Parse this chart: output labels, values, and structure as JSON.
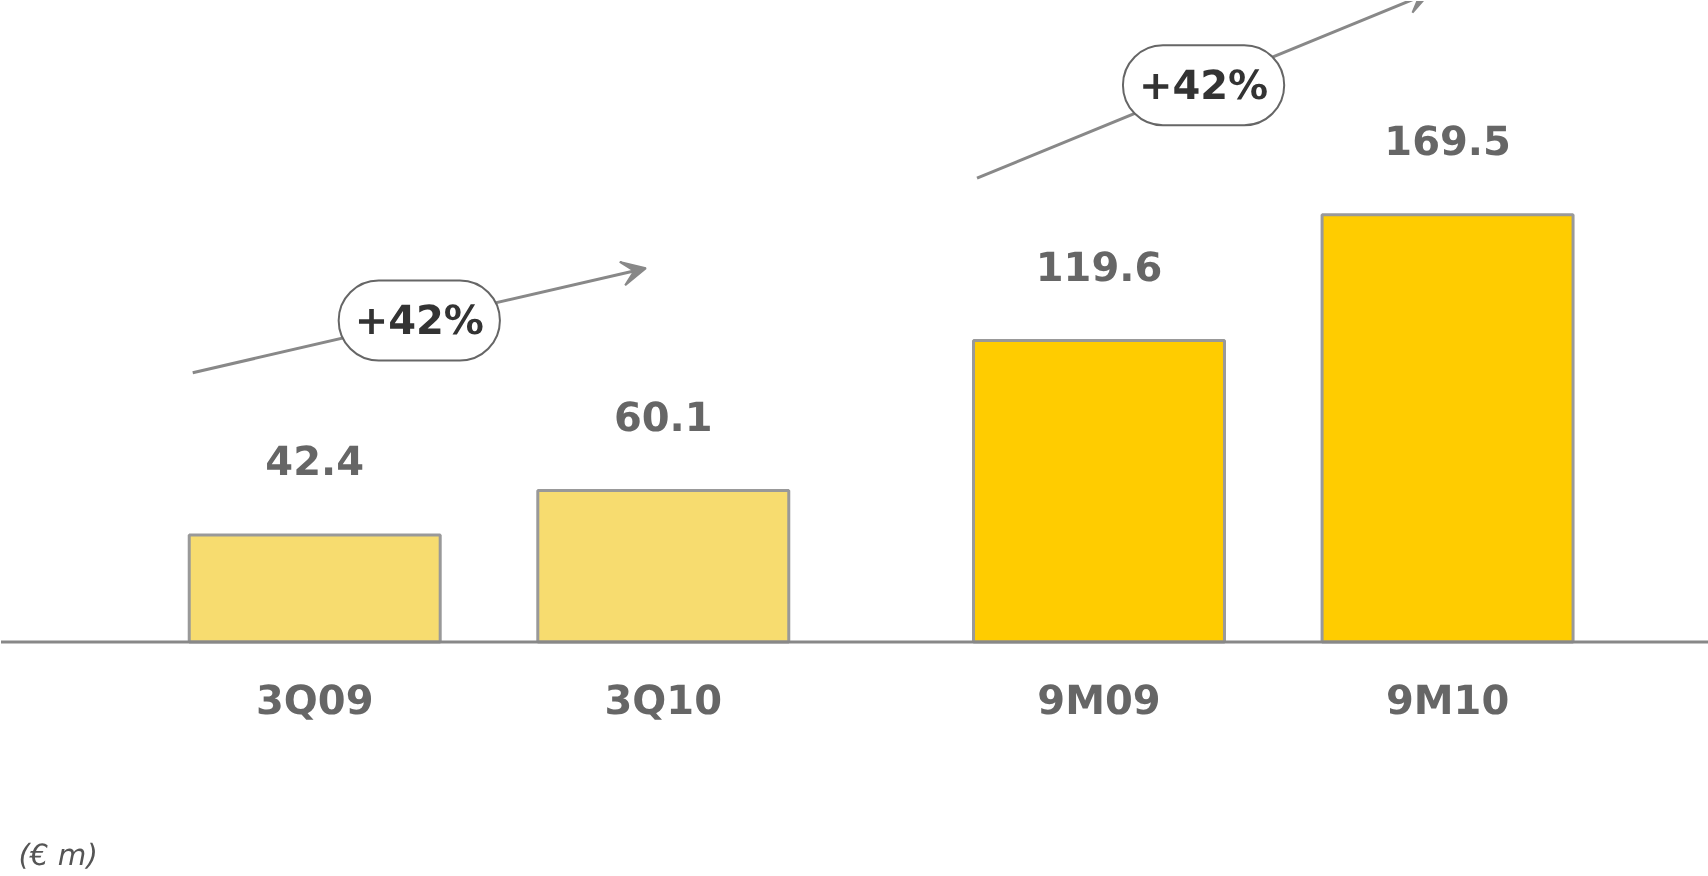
{
  "chart_data": {
    "type": "bar",
    "categories": [
      "3Q09",
      "3Q10",
      "9M09",
      "9M10"
    ],
    "values": [
      42.4,
      60.1,
      119.6,
      169.5
    ],
    "colors": [
      "#f7dc6f",
      "#f7dc6f",
      "#ffcc00",
      "#ffcc00"
    ],
    "data_labels": true,
    "annotations": [
      "+42%",
      "+42%",
      "(€ m)"
    ]
  }
}
